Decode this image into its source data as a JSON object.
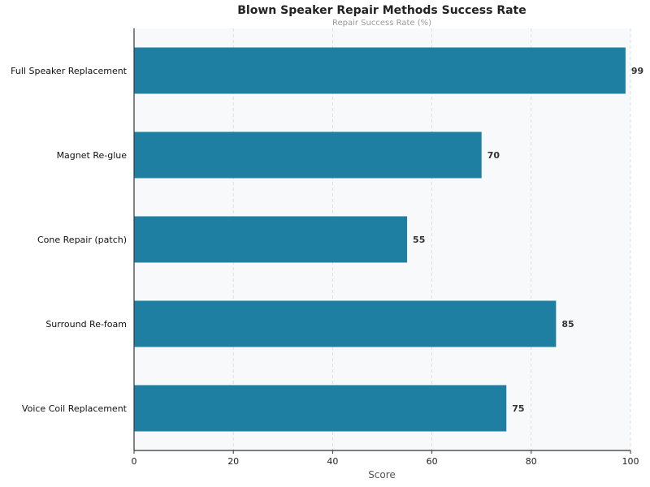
{
  "chart_data": {
    "type": "bar",
    "orientation": "horizontal",
    "title": "Blown Speaker Repair Methods Success Rate",
    "subtitle": "Repair Success Rate (%)",
    "xlabel": "Score",
    "ylabel": "",
    "categories": [
      "Full Speaker Replacement",
      "Magnet Re-glue",
      "Cone Repair (patch)",
      "Surround Re-foam",
      "Voice Coil Replacement"
    ],
    "values": [
      99,
      70,
      55,
      85,
      75
    ],
    "xlim": [
      0,
      100
    ],
    "xticks": [
      0,
      20,
      40,
      60,
      80,
      100
    ],
    "grid": "vertical dashed",
    "bar_color": "#1f7fa3"
  }
}
